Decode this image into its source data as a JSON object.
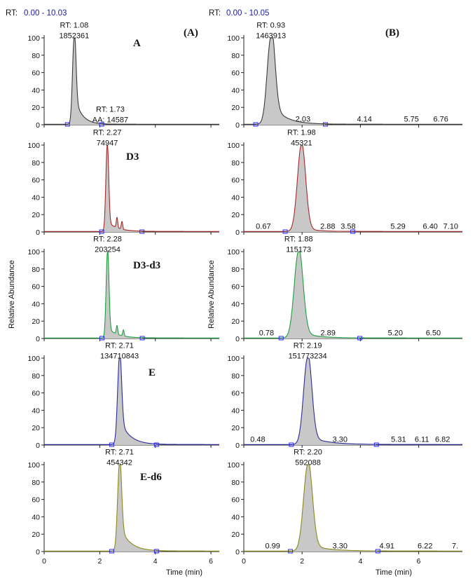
{
  "header": {
    "left_rt_prefix": "RT:",
    "left_rt_range": "0.00 - 10.03",
    "right_rt_prefix": "RT:",
    "right_rt_range": "0.00 - 10.05",
    "left_panel_label": "(A)",
    "right_panel_label": "(B)"
  },
  "axes": {
    "ylabel": "Relative Abundance",
    "xlabel": "Time (min)",
    "ylim": [
      0,
      100
    ],
    "yticks": [
      "0",
      "20",
      "40",
      "60",
      "80",
      "100"
    ],
    "xticks": [
      "0",
      "2",
      "4",
      "6"
    ]
  },
  "chart_data": [
    {
      "type": "line",
      "column": "A",
      "row": 0,
      "label": "A",
      "color": "#3a3a3a",
      "xlim": [
        0,
        6.3
      ],
      "peak_rt": 1.08,
      "peak_width": 0.06,
      "tail": 0.35,
      "tail_decay": 0.25,
      "annotations": [
        {
          "text": "RT: 1.08",
          "x": 1.08,
          "y": 115
        },
        {
          "text": "1852361",
          "x": 1.08,
          "y": 103
        },
        {
          "text": "RT: 1.73",
          "x": 2.38,
          "y": 18
        },
        {
          "text": "AA: 14587",
          "x": 2.38,
          "y": 6
        }
      ],
      "minor_peaks": []
    },
    {
      "type": "line",
      "column": "A",
      "row": 1,
      "label": "D3",
      "color": "#a52a2a",
      "xlim": [
        0,
        6.3
      ],
      "peak_rt": 2.27,
      "peak_width": 0.05,
      "tail": 0.12,
      "tail_decay": 0.35,
      "annotations": [
        {
          "text": "RT: 2.27",
          "x": 2.27,
          "y": 115
        },
        {
          "text": "74947",
          "x": 2.27,
          "y": 103
        }
      ],
      "minor_peaks": [
        {
          "x": 2.62,
          "h": 12
        },
        {
          "x": 2.8,
          "h": 9
        }
      ]
    },
    {
      "type": "line",
      "column": "A",
      "row": 2,
      "label": "D3-d3",
      "color": "#1e9e3e",
      "xlim": [
        0,
        6.3
      ],
      "peak_rt": 2.28,
      "peak_width": 0.05,
      "tail": 0.12,
      "tail_decay": 0.35,
      "annotations": [
        {
          "text": "RT: 2.28",
          "x": 2.28,
          "y": 115
        },
        {
          "text": "203254",
          "x": 2.28,
          "y": 103
        }
      ],
      "minor_peaks": [
        {
          "x": 2.62,
          "h": 10
        },
        {
          "x": 2.85,
          "h": 7
        }
      ]
    },
    {
      "type": "line",
      "column": "A",
      "row": 3,
      "label": "E",
      "color": "#2c2c9c",
      "xlim": [
        0,
        6.3
      ],
      "peak_rt": 2.71,
      "peak_width": 0.07,
      "tail": 0.3,
      "tail_decay": 0.35,
      "annotations": [
        {
          "text": "RT: 2.71",
          "x": 2.71,
          "y": 115
        },
        {
          "text": "134710843",
          "x": 2.71,
          "y": 103
        }
      ],
      "minor_peaks": []
    },
    {
      "type": "line",
      "column": "A",
      "row": 4,
      "label": "E-d6",
      "color": "#8a8a1a",
      "xlim": [
        0,
        6.3
      ],
      "peak_rt": 2.71,
      "peak_width": 0.07,
      "tail": 0.3,
      "tail_decay": 0.35,
      "annotations": [
        {
          "text": "RT: 2.71",
          "x": 2.71,
          "y": 115
        },
        {
          "text": "454342",
          "x": 2.71,
          "y": 103
        }
      ],
      "minor_peaks": []
    },
    {
      "type": "line",
      "column": "B",
      "row": 0,
      "label": "",
      "color": "#3a3a3a",
      "xlim": [
        0,
        7.5
      ],
      "peak_rt": 0.93,
      "peak_width": 0.13,
      "tail": 0.25,
      "tail_decay": 0.45,
      "annotations": [
        {
          "text": "RT: 0.93",
          "x": 0.93,
          "y": 115
        },
        {
          "text": "1463913",
          "x": 0.93,
          "y": 103
        },
        {
          "text": "2.03",
          "x": 2.03,
          "y": 7
        },
        {
          "text": "4.14",
          "x": 4.14,
          "y": 7
        },
        {
          "text": "5.75",
          "x": 5.75,
          "y": 7
        },
        {
          "text": "6.76",
          "x": 6.76,
          "y": 7
        }
      ],
      "minor_peaks": []
    },
    {
      "type": "line",
      "column": "B",
      "row": 1,
      "label": "",
      "color": "#a52a2a",
      "xlim": [
        0,
        7.5
      ],
      "peak_rt": 1.98,
      "peak_width": 0.14,
      "tail": 0.05,
      "tail_decay": 0.4,
      "annotations": [
        {
          "text": "RT: 1.98",
          "x": 1.98,
          "y": 115
        },
        {
          "text": "45321",
          "x": 1.98,
          "y": 103
        },
        {
          "text": "0.67",
          "x": 0.67,
          "y": 7
        },
        {
          "text": "2.88",
          "x": 2.88,
          "y": 7
        },
        {
          "text": "3.58",
          "x": 3.58,
          "y": 7
        },
        {
          "text": "5.29",
          "x": 5.29,
          "y": 7
        },
        {
          "text": "6.40",
          "x": 6.4,
          "y": 7
        },
        {
          "text": "7.10",
          "x": 7.1,
          "y": 7
        }
      ],
      "minor_peaks": []
    },
    {
      "type": "line",
      "column": "B",
      "row": 2,
      "label": "",
      "color": "#1e9e3e",
      "xlim": [
        0,
        7.5
      ],
      "peak_rt": 1.88,
      "peak_width": 0.15,
      "tail": 0.08,
      "tail_decay": 0.5,
      "annotations": [
        {
          "text": "RT: 1.88",
          "x": 1.88,
          "y": 115
        },
        {
          "text": "115173",
          "x": 1.88,
          "y": 103
        },
        {
          "text": "0.78",
          "x": 0.78,
          "y": 7
        },
        {
          "text": "2.89",
          "x": 2.89,
          "y": 7
        },
        {
          "text": "5.20",
          "x": 5.2,
          "y": 7
        },
        {
          "text": "6.50",
          "x": 6.5,
          "y": 7
        }
      ],
      "minor_peaks": []
    },
    {
      "type": "line",
      "column": "B",
      "row": 3,
      "label": "",
      "color": "#2c2c9c",
      "xlim": [
        0,
        7.5
      ],
      "peak_rt": 2.19,
      "peak_width": 0.14,
      "tail": 0.1,
      "tail_decay": 0.6,
      "annotations": [
        {
          "text": "RT: 2.19",
          "x": 2.19,
          "y": 115
        },
        {
          "text": "151773234",
          "x": 2.19,
          "y": 103
        },
        {
          "text": "0.48",
          "x": 0.48,
          "y": 7
        },
        {
          "text": "3.30",
          "x": 3.3,
          "y": 7
        },
        {
          "text": "5.31",
          "x": 5.31,
          "y": 7
        },
        {
          "text": "6.11",
          "x": 6.11,
          "y": 7
        },
        {
          "text": "6.82",
          "x": 6.82,
          "y": 7
        }
      ],
      "minor_peaks": []
    },
    {
      "type": "line",
      "column": "B",
      "row": 4,
      "label": "",
      "color": "#8a8a1a",
      "xlim": [
        0,
        7.5
      ],
      "peak_rt": 2.2,
      "peak_width": 0.15,
      "tail": 0.08,
      "tail_decay": 0.6,
      "annotations": [
        {
          "text": "RT: 2.20",
          "x": 2.2,
          "y": 115
        },
        {
          "text": "592088",
          "x": 2.2,
          "y": 103
        },
        {
          "text": "0.99",
          "x": 0.99,
          "y": 7
        },
        {
          "text": "3.30",
          "x": 3.3,
          "y": 7
        },
        {
          "text": "4.91",
          "x": 4.91,
          "y": 7
        },
        {
          "text": "6.22",
          "x": 6.22,
          "y": 7
        },
        {
          "text": "7.",
          "x": 7.25,
          "y": 7
        }
      ],
      "minor_peaks": []
    }
  ]
}
